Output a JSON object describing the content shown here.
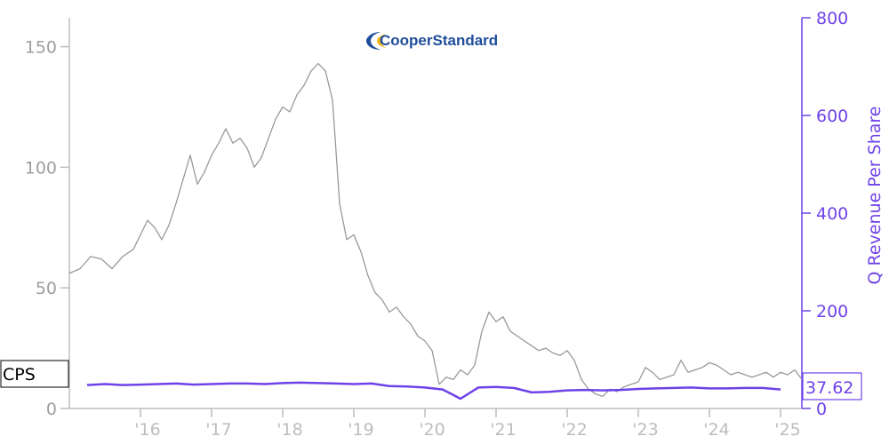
{
  "logo": {
    "text": "CooperStandard",
    "color": "#1f4e9c",
    "accent": "#f2b61b"
  },
  "chart_data": {
    "type": "line",
    "xlim": [
      2015.0,
      2025.3
    ],
    "x_ticks": [
      {
        "x": 2016,
        "label": "'16"
      },
      {
        "x": 2017,
        "label": "'17"
      },
      {
        "x": 2018,
        "label": "'18"
      },
      {
        "x": 2019,
        "label": "'19"
      },
      {
        "x": 2020,
        "label": "'20"
      },
      {
        "x": 2021,
        "label": "'21"
      },
      {
        "x": 2022,
        "label": "'22"
      },
      {
        "x": 2023,
        "label": "'23"
      },
      {
        "x": 2024,
        "label": "'24"
      },
      {
        "x": 2025,
        "label": "'25"
      }
    ],
    "y_left": {
      "lim": [
        0,
        162
      ],
      "ticks": [
        0,
        50,
        100,
        150
      ],
      "color": "#9e9e9e"
    },
    "y_right": {
      "lim": [
        0,
        800
      ],
      "ticks": [
        0,
        200,
        400,
        600,
        800
      ],
      "label": "Q Revenue Per Share",
      "color": "#6f42e8"
    },
    "ticker_label": "CPS",
    "last_value_label": "37.62",
    "series": [
      {
        "name": "CPS",
        "axis": "left",
        "color": "#999999",
        "points": [
          [
            2015.0,
            56
          ],
          [
            2015.15,
            58
          ],
          [
            2015.3,
            63
          ],
          [
            2015.45,
            62
          ],
          [
            2015.6,
            58
          ],
          [
            2015.75,
            63
          ],
          [
            2015.9,
            66
          ],
          [
            2016.0,
            72
          ],
          [
            2016.1,
            78
          ],
          [
            2016.2,
            75
          ],
          [
            2016.3,
            70
          ],
          [
            2016.4,
            76
          ],
          [
            2016.5,
            85
          ],
          [
            2016.6,
            95
          ],
          [
            2016.7,
            105
          ],
          [
            2016.8,
            93
          ],
          [
            2016.9,
            98
          ],
          [
            2017.0,
            105
          ],
          [
            2017.1,
            110
          ],
          [
            2017.2,
            116
          ],
          [
            2017.3,
            110
          ],
          [
            2017.4,
            112
          ],
          [
            2017.5,
            108
          ],
          [
            2017.6,
            100
          ],
          [
            2017.7,
            104
          ],
          [
            2017.8,
            112
          ],
          [
            2017.9,
            120
          ],
          [
            2018.0,
            125
          ],
          [
            2018.1,
            123
          ],
          [
            2018.2,
            130
          ],
          [
            2018.3,
            134
          ],
          [
            2018.4,
            140
          ],
          [
            2018.5,
            143
          ],
          [
            2018.6,
            140
          ],
          [
            2018.7,
            128
          ],
          [
            2018.8,
            85
          ],
          [
            2018.9,
            70
          ],
          [
            2019.0,
            72
          ],
          [
            2019.1,
            65
          ],
          [
            2019.2,
            55
          ],
          [
            2019.3,
            48
          ],
          [
            2019.4,
            45
          ],
          [
            2019.5,
            40
          ],
          [
            2019.6,
            42
          ],
          [
            2019.7,
            38
          ],
          [
            2019.8,
            35
          ],
          [
            2019.9,
            30
          ],
          [
            2020.0,
            28
          ],
          [
            2020.1,
            24
          ],
          [
            2020.2,
            10
          ],
          [
            2020.3,
            13
          ],
          [
            2020.4,
            12
          ],
          [
            2020.5,
            16
          ],
          [
            2020.6,
            14
          ],
          [
            2020.7,
            18
          ],
          [
            2020.8,
            32
          ],
          [
            2020.9,
            40
          ],
          [
            2021.0,
            36
          ],
          [
            2021.1,
            38
          ],
          [
            2021.2,
            32
          ],
          [
            2021.3,
            30
          ],
          [
            2021.4,
            28
          ],
          [
            2021.5,
            26
          ],
          [
            2021.6,
            24
          ],
          [
            2021.7,
            25
          ],
          [
            2021.8,
            23
          ],
          [
            2021.9,
            22
          ],
          [
            2022.0,
            24
          ],
          [
            2022.1,
            20
          ],
          [
            2022.2,
            12
          ],
          [
            2022.3,
            8
          ],
          [
            2022.4,
            6
          ],
          [
            2022.5,
            5
          ],
          [
            2022.6,
            8
          ],
          [
            2022.7,
            7
          ],
          [
            2022.8,
            9
          ],
          [
            2022.9,
            10
          ],
          [
            2023.0,
            11
          ],
          [
            2023.1,
            17
          ],
          [
            2023.2,
            15
          ],
          [
            2023.3,
            12
          ],
          [
            2023.4,
            13
          ],
          [
            2023.5,
            14
          ],
          [
            2023.6,
            20
          ],
          [
            2023.7,
            15
          ],
          [
            2023.8,
            16
          ],
          [
            2023.9,
            17
          ],
          [
            2024.0,
            19
          ],
          [
            2024.1,
            18
          ],
          [
            2024.2,
            16
          ],
          [
            2024.3,
            14
          ],
          [
            2024.4,
            15
          ],
          [
            2024.5,
            14
          ],
          [
            2024.6,
            13
          ],
          [
            2024.7,
            14
          ],
          [
            2024.8,
            15
          ],
          [
            2024.9,
            13
          ],
          [
            2025.0,
            15
          ],
          [
            2025.1,
            14
          ],
          [
            2025.2,
            16
          ],
          [
            2025.3,
            12
          ]
        ]
      },
      {
        "name": "Q Revenue Per Share",
        "axis": "right",
        "color": "#6f42e8",
        "points": [
          [
            2015.25,
            48
          ],
          [
            2015.5,
            50
          ],
          [
            2015.75,
            48
          ],
          [
            2016.0,
            49
          ],
          [
            2016.25,
            50
          ],
          [
            2016.5,
            51
          ],
          [
            2016.75,
            49
          ],
          [
            2017.0,
            50
          ],
          [
            2017.25,
            51
          ],
          [
            2017.5,
            51
          ],
          [
            2017.75,
            50
          ],
          [
            2018.0,
            52
          ],
          [
            2018.25,
            53
          ],
          [
            2018.5,
            52
          ],
          [
            2018.75,
            51
          ],
          [
            2019.0,
            50
          ],
          [
            2019.25,
            51
          ],
          [
            2019.5,
            46
          ],
          [
            2019.75,
            45
          ],
          [
            2020.0,
            43
          ],
          [
            2020.25,
            39
          ],
          [
            2020.5,
            20
          ],
          [
            2020.75,
            43
          ],
          [
            2021.0,
            44
          ],
          [
            2021.25,
            42
          ],
          [
            2021.5,
            33
          ],
          [
            2021.75,
            34
          ],
          [
            2022.0,
            37
          ],
          [
            2022.25,
            38
          ],
          [
            2022.5,
            37
          ],
          [
            2022.75,
            38
          ],
          [
            2023.0,
            40
          ],
          [
            2023.25,
            41
          ],
          [
            2023.5,
            42
          ],
          [
            2023.75,
            43
          ],
          [
            2024.0,
            41
          ],
          [
            2024.25,
            41
          ],
          [
            2024.5,
            42
          ],
          [
            2024.75,
            42
          ],
          [
            2025.0,
            39
          ]
        ]
      }
    ],
    "grid": false
  }
}
